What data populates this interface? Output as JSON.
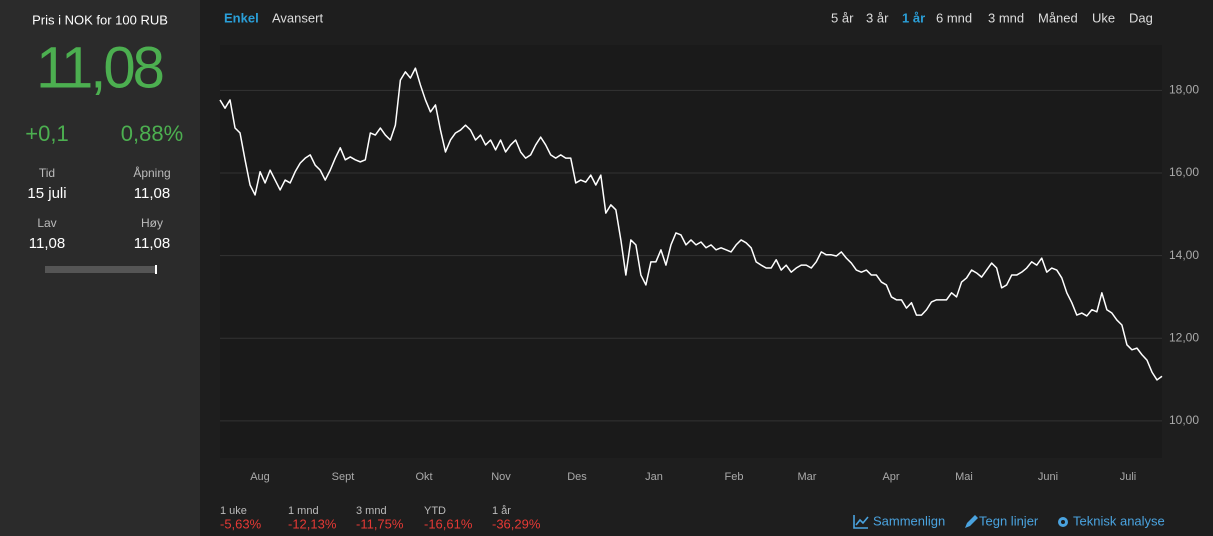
{
  "sidebar": {
    "title": "Pris i NOK for 100 RUB",
    "price": "11,08",
    "change": "+0,1",
    "change_pct": "0,88%",
    "stats": [
      {
        "label": "Tid",
        "value": "15 juli"
      },
      {
        "label": "Åpning",
        "value": "11,08"
      },
      {
        "label": "Lav",
        "value": "11,08"
      },
      {
        "label": "Høy",
        "value": "11,08"
      }
    ]
  },
  "tabs": {
    "view": [
      "Enkel",
      "Avansert"
    ],
    "active_view": 0,
    "periods": [
      "5 år",
      "3 år",
      "1 år",
      "6 mnd",
      "3 mnd",
      "Måned",
      "Uke",
      "Dag"
    ],
    "active_period": 2
  },
  "chart_data": {
    "type": "line",
    "color": "#ffffff",
    "grid": true,
    "month_labels": [
      "Aug",
      "Sept",
      "Okt",
      "Nov",
      "Des",
      "Jan",
      "Feb",
      "Mar",
      "Apr",
      "Mai",
      "Juni",
      "Juli"
    ],
    "ylim": [
      9.1,
      19.1
    ],
    "yticks": [
      {
        "value": 10,
        "label": "10,00"
      },
      {
        "value": 12,
        "label": "12,00"
      },
      {
        "value": 14,
        "label": "14,00"
      },
      {
        "value": 16,
        "label": "16,00"
      },
      {
        "value": 18,
        "label": "18,00"
      }
    ],
    "values": [
      17.77,
      17.57,
      17.77,
      17.09,
      16.97,
      16.32,
      15.71,
      15.47,
      16.03,
      15.76,
      16.07,
      15.83,
      15.59,
      15.83,
      15.76,
      16.03,
      16.24,
      16.36,
      16.44,
      16.19,
      16.07,
      15.83,
      16.07,
      16.36,
      16.61,
      16.32,
      16.39,
      16.32,
      16.27,
      16.32,
      16.97,
      16.92,
      17.09,
      16.92,
      16.8,
      17.16,
      18.25,
      18.45,
      18.3,
      18.54,
      18.13,
      17.77,
      17.48,
      17.65,
      17.04,
      16.51,
      16.8,
      16.97,
      17.04,
      17.16,
      17.04,
      16.8,
      16.92,
      16.68,
      16.8,
      16.56,
      16.8,
      16.51,
      16.68,
      16.8,
      16.51,
      16.36,
      16.44,
      16.68,
      16.87,
      16.68,
      16.44,
      16.36,
      16.44,
      16.36,
      16.36,
      15.76,
      15.83,
      15.78,
      15.95,
      15.71,
      15.95,
      15.03,
      15.23,
      15.11,
      14.38,
      13.53,
      14.38,
      14.26,
      13.53,
      13.29,
      13.85,
      13.85,
      14.14,
      13.77,
      14.26,
      14.55,
      14.5,
      14.26,
      14.38,
      14.26,
      14.33,
      14.19,
      14.26,
      14.14,
      14.19,
      14.14,
      14.09,
      14.26,
      14.38,
      14.31,
      14.19,
      13.85,
      13.77,
      13.7,
      13.7,
      13.9,
      13.65,
      13.77,
      13.6,
      13.7,
      13.77,
      13.77,
      13.7,
      13.85,
      14.09,
      14.02,
      14.02,
      13.99,
      14.09,
      13.94,
      13.82,
      13.65,
      13.6,
      13.65,
      13.53,
      13.53,
      13.36,
      13.29,
      13.0,
      12.93,
      12.93,
      12.73,
      12.86,
      12.56,
      12.56,
      12.69,
      12.88,
      12.93,
      12.93,
      12.93,
      13.1,
      13.0,
      13.36,
      13.46,
      13.65,
      13.58,
      13.48,
      13.65,
      13.82,
      13.7,
      13.22,
      13.29,
      13.53,
      13.53,
      13.6,
      13.7,
      13.85,
      13.77,
      13.94,
      13.6,
      13.7,
      13.65,
      13.46,
      13.1,
      12.86,
      12.56,
      12.61,
      12.54,
      12.69,
      12.64,
      13.1,
      12.69,
      12.61,
      12.44,
      12.32,
      11.84,
      11.72,
      11.76,
      11.6,
      11.47,
      11.18,
      10.99,
      11.08
    ]
  },
  "returns": [
    {
      "label": "1 uke",
      "value": "-5,63%"
    },
    {
      "label": "1 mnd",
      "value": "-12,13%"
    },
    {
      "label": "3 mnd",
      "value": "-11,75%"
    },
    {
      "label": "YTD",
      "value": "-16,61%"
    },
    {
      "label": "1 år",
      "value": "-36,29%"
    }
  ],
  "tools": [
    "Sammenlign",
    "Tegn linjer",
    "Teknisk analyse"
  ]
}
